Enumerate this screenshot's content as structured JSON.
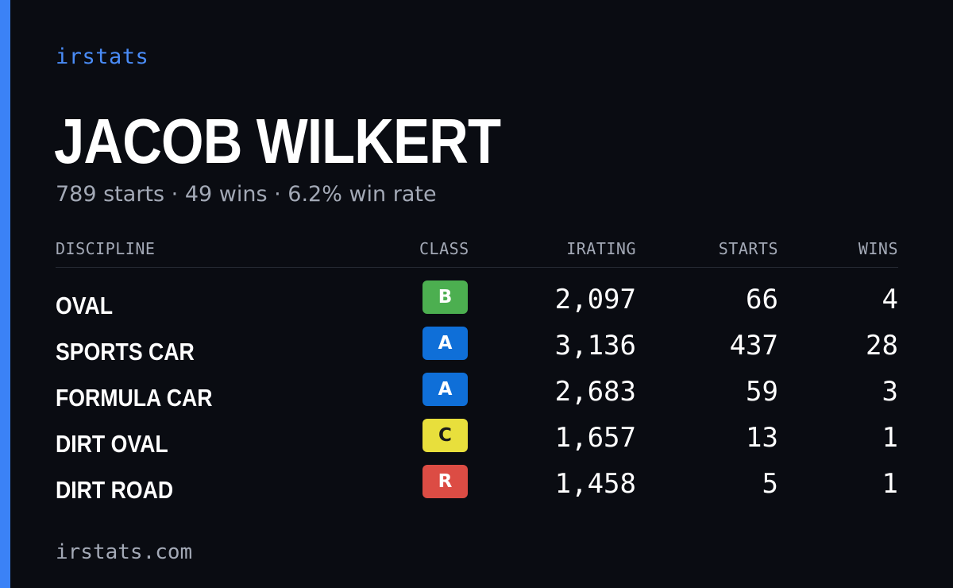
{
  "brand": "irstats",
  "driver": {
    "name": "JACOB WILKERT",
    "summary": "789 starts · 49 wins · 6.2% win rate"
  },
  "table": {
    "headers": {
      "discipline": "DISCIPLINE",
      "class": "CLASS",
      "irating": "IRATING",
      "starts": "STARTS",
      "wins": "WINS"
    },
    "rows": [
      {
        "discipline": "OVAL",
        "class": "B",
        "irating": "2,097",
        "starts": "66",
        "wins": "4"
      },
      {
        "discipline": "SPORTS CAR",
        "class": "A",
        "irating": "3,136",
        "starts": "437",
        "wins": "28"
      },
      {
        "discipline": "FORMULA CAR",
        "class": "A",
        "irating": "2,683",
        "starts": "59",
        "wins": "3"
      },
      {
        "discipline": "DIRT OVAL",
        "class": "C",
        "irating": "1,657",
        "starts": "13",
        "wins": "1"
      },
      {
        "discipline": "DIRT ROAD",
        "class": "R",
        "irating": "1,458",
        "starts": "5",
        "wins": "1"
      }
    ]
  },
  "class_colors": {
    "A": {
      "bg": "#0f6fd8",
      "fg": "#ffffff"
    },
    "B": {
      "bg": "#4caf50",
      "fg": "#ffffff"
    },
    "C": {
      "bg": "#e8df3c",
      "fg": "#1a1a1a"
    },
    "R": {
      "bg": "#dc4c44",
      "fg": "#ffffff"
    }
  },
  "colors": {
    "accent": "#3b82f6",
    "background": "#0a0c12"
  },
  "footer": {
    "url": "irstats.com"
  }
}
